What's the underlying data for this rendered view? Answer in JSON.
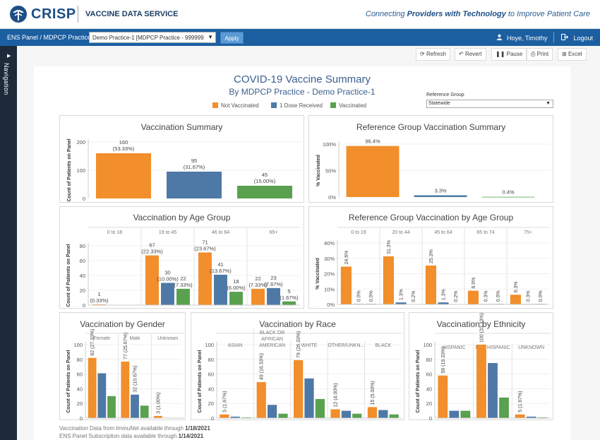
{
  "header": {
    "logo": "CRISP",
    "service": "VACCINE DATA SERVICE",
    "tagline_pre": "Connecting ",
    "tagline_bold": "Providers with Technology",
    "tagline_post": " to Improve Patient Care"
  },
  "bar": {
    "panel_label": "ENS Panel / MDPCP Practice:",
    "panel_value": "Demo Practice-1 [MDPCP Practice - 999999",
    "apply": "Apply",
    "user": "Hoye, Timothy",
    "logout": "Logout"
  },
  "nav": {
    "label": "Navigation"
  },
  "toolbar": {
    "refresh": "Refresh",
    "revert": "Revert",
    "pause": "Pause",
    "print": "Print",
    "excel": "Excel"
  },
  "summary": {
    "title": "COVID-19 Vaccine Summary",
    "subtitle": "By MDPCP Practice - Demo Practice-1",
    "legend": [
      "Not Vaccinated",
      "1 Dose Received",
      "Vaccinated"
    ],
    "ref_group_label": "Reference Group",
    "ref_group_value": "Statewide"
  },
  "colors": {
    "not_vaccinated": "#f28e2b",
    "one_dose": "#4e79a7",
    "vaccinated": "#59a14f"
  },
  "footer": {
    "line1_pre": "Vaccination Data from ImmuNet available through ",
    "line1_date": "1/18/2021",
    "line2_pre": "ENS Panel Subscription data available through ",
    "line2_date": "1/14/2021"
  },
  "chart_data": [
    {
      "id": "vacc_summary",
      "type": "bar",
      "title": "Vaccination Summary",
      "ylabel": "Count of Patients on Panel",
      "ylim": [
        0,
        200
      ],
      "yticks": [
        0,
        100,
        200
      ],
      "categories": [
        "Not Vaccinated",
        "1 Dose Received",
        "Vaccinated"
      ],
      "values": [
        160,
        95,
        45
      ],
      "labels": [
        [
          "160",
          "(53.33%)"
        ],
        [
          "95",
          "(31.67%)"
        ],
        [
          "45",
          "(15.00%)"
        ]
      ]
    },
    {
      "id": "ref_summary",
      "type": "bar",
      "title": "Reference Group Vaccination Summary",
      "ylabel": "% Vaccinated",
      "ylim": [
        0,
        100
      ],
      "yticks": [
        0,
        50,
        100
      ],
      "tick_labels": [
        "0%",
        "50%",
        "100%"
      ],
      "categories": [
        "Not Vaccinated",
        "1 Dose Received",
        "Vaccinated"
      ],
      "values": [
        96.4,
        3.3,
        0.4
      ],
      "labels": [
        [
          "96.4%"
        ],
        [
          "3.3%"
        ],
        [
          "0.4%"
        ]
      ]
    },
    {
      "id": "age",
      "type": "bar",
      "title": "Vaccination by Age Group",
      "ylabel": "Count of Patients on Panel",
      "ylim": [
        0,
        80
      ],
      "yticks": [
        0,
        20,
        40,
        60,
        80
      ],
      "groups": [
        "0 to 18",
        "19 to 45",
        "46 to 64",
        "65+"
      ],
      "series": [
        {
          "name": "Not Vaccinated",
          "values": [
            1,
            67,
            71,
            22
          ],
          "labels": [
            [
              "1",
              "(0.33%)"
            ],
            [
              "67",
              "(22.33%)"
            ],
            [
              "71",
              "(23.67%)"
            ],
            [
              "22",
              "(7.33%)"
            ]
          ]
        },
        {
          "name": "1 Dose Received",
          "values": [
            null,
            30,
            41,
            23
          ],
          "labels": [
            null,
            [
              "30",
              "(10.00%)"
            ],
            [
              "41",
              "(13.67%)"
            ],
            [
              "23",
              "(7.67%)"
            ]
          ]
        },
        {
          "name": "Vaccinated",
          "values": [
            null,
            22,
            18,
            5
          ],
          "labels": [
            null,
            [
              "22",
              "(7.33%)"
            ],
            [
              "18",
              "(6.00%)"
            ],
            [
              "5",
              "(1.67%)"
            ]
          ]
        }
      ]
    },
    {
      "id": "ref_age",
      "type": "bar",
      "title": "Reference Group Vaccination by Age Group",
      "ylabel": "% Vaccinated",
      "ylim": [
        0,
        40
      ],
      "yticks": [
        0,
        10,
        20,
        30,
        40
      ],
      "tick_labels": [
        "0%",
        "10%",
        "20%",
        "30%",
        "40%"
      ],
      "groups": [
        "0 to 19",
        "20 to 44",
        "45 to 64",
        "65 to 74",
        "75+"
      ],
      "series": [
        {
          "name": "Not Vaccinated",
          "values": [
            24.6,
            31.3,
            25.3,
            8.9,
            6.3
          ],
          "labels": [
            "24.6%",
            "31.3%",
            "25.3%",
            "8.9%",
            "6.3%"
          ]
        },
        {
          "name": "1 Dose Received",
          "values": [
            0.0,
            1.3,
            1.3,
            0.3,
            0.3
          ],
          "labels": [
            "0.0%",
            "1.3%",
            "1.3%",
            "0.3%",
            "0.3%"
          ]
        },
        {
          "name": "Vaccinated",
          "values": [
            0.0,
            0.2,
            0.2,
            0.0,
            0.0
          ],
          "labels": [
            "0.0%",
            "0.2%",
            "0.2%",
            "0.0%",
            "0.0%"
          ]
        }
      ]
    },
    {
      "id": "gender",
      "type": "bar",
      "title": "Vaccination by Gender",
      "ylabel": "Count of Patients on Panel",
      "ylim": [
        0,
        100
      ],
      "yticks": [
        0,
        20,
        40,
        60,
        80,
        100
      ],
      "groups": [
        "Female",
        "Male",
        "Unknown"
      ],
      "series": [
        {
          "name": "Not Vaccinated",
          "values": [
            82,
            77,
            3
          ],
          "labels": [
            [
              "82",
              "(27.33%)"
            ],
            [
              "77",
              "(25.67%)"
            ],
            [
              "3",
              "(1.00%)"
            ]
          ]
        },
        {
          "name": "1 Dose Received",
          "values": [
            61,
            32,
            null
          ],
          "labels": [
            null,
            [
              "32",
              "(10.67%)"
            ],
            null
          ]
        },
        {
          "name": "Vaccinated",
          "values": [
            30,
            17,
            null
          ],
          "labels": [
            null,
            null,
            null
          ]
        }
      ]
    },
    {
      "id": "race",
      "type": "bar",
      "title": "Vaccination by Race",
      "ylabel": "Count of Patients on Panel",
      "ylim": [
        0,
        100
      ],
      "yticks": [
        0,
        20,
        40,
        60,
        80,
        100
      ],
      "groups": [
        [
          "ASIAN"
        ],
        [
          "BLACK OR",
          "AFRICAN",
          "AMERICAN"
        ],
        [
          "WHITE"
        ],
        [
          "OTHER/UNKN..."
        ],
        [
          "BLACK"
        ]
      ],
      "series": [
        {
          "name": "Not Vaccinated",
          "values": [
            5,
            49,
            79,
            12,
            15
          ],
          "labels": [
            [
              "5",
              "(1.67%)"
            ],
            [
              "49",
              "(16.33%)"
            ],
            [
              "79",
              "(26.33%)"
            ],
            [
              "12",
              "(4.00%)"
            ],
            [
              "15",
              "(5.00%)"
            ]
          ]
        },
        {
          "name": "1 Dose Received",
          "values": [
            2,
            18,
            54,
            10,
            11
          ],
          "labels": [
            null,
            null,
            null,
            null,
            null
          ]
        },
        {
          "name": "Vaccinated",
          "values": [
            1,
            6,
            26,
            6,
            5
          ],
          "labels": [
            null,
            null,
            null,
            null,
            null
          ]
        }
      ]
    },
    {
      "id": "ethnicity",
      "type": "bar",
      "title": "Vaccination by Ethnicity",
      "ylabel": "Count of Patients on Panel",
      "ylim": [
        0,
        100
      ],
      "yticks": [
        0,
        20,
        40,
        60,
        80,
        100
      ],
      "groups": [
        "HISPANIC",
        "NOT HISPANIC",
        "UNKNOWN"
      ],
      "series": [
        {
          "name": "Not Vaccinated",
          "values": [
            58,
            100,
            5
          ],
          "labels": [
            [
              "58",
              "(19.33%)"
            ],
            [
              "100",
              "(33.33%)"
            ],
            [
              "5",
              "(1.67%)"
            ]
          ]
        },
        {
          "name": "1 Dose Received",
          "values": [
            10,
            75,
            2
          ],
          "labels": [
            null,
            null,
            null
          ]
        },
        {
          "name": "Vaccinated",
          "values": [
            10,
            28,
            1
          ],
          "labels": [
            null,
            null,
            null
          ]
        }
      ]
    }
  ]
}
